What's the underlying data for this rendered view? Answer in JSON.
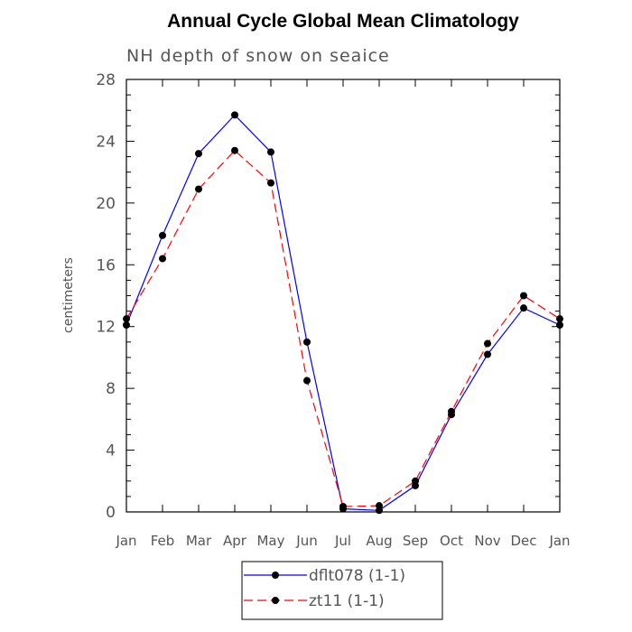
{
  "chart_data": {
    "type": "line",
    "title": "Annual Cycle Global Mean Climatology",
    "subtitle": "NH depth of snow on seaice",
    "xlabel": "",
    "ylabel": "centimeters",
    "categories": [
      "Jan",
      "Feb",
      "Mar",
      "Apr",
      "May",
      "Jun",
      "Jul",
      "Aug",
      "Sep",
      "Oct",
      "Nov",
      "Dec",
      "Jan"
    ],
    "ylim": [
      0,
      28
    ],
    "yticks": [
      0,
      4,
      8,
      12,
      16,
      20,
      24,
      28
    ],
    "grid": false,
    "legend_position": "bottom",
    "series": [
      {
        "name": "dflt078 (1-1)",
        "color": "#0000ff",
        "dash": "solid",
        "values": [
          12.1,
          17.9,
          23.2,
          25.7,
          23.3,
          11.0,
          0.2,
          0.1,
          1.7,
          6.3,
          10.2,
          13.2,
          12.1
        ]
      },
      {
        "name": "zt11 (1-1)",
        "color": "#ff0000",
        "dash": "dashed",
        "values": [
          12.5,
          16.4,
          20.9,
          23.4,
          21.3,
          8.5,
          0.35,
          0.4,
          2.0,
          6.5,
          10.9,
          14.0,
          12.5
        ]
      }
    ]
  }
}
